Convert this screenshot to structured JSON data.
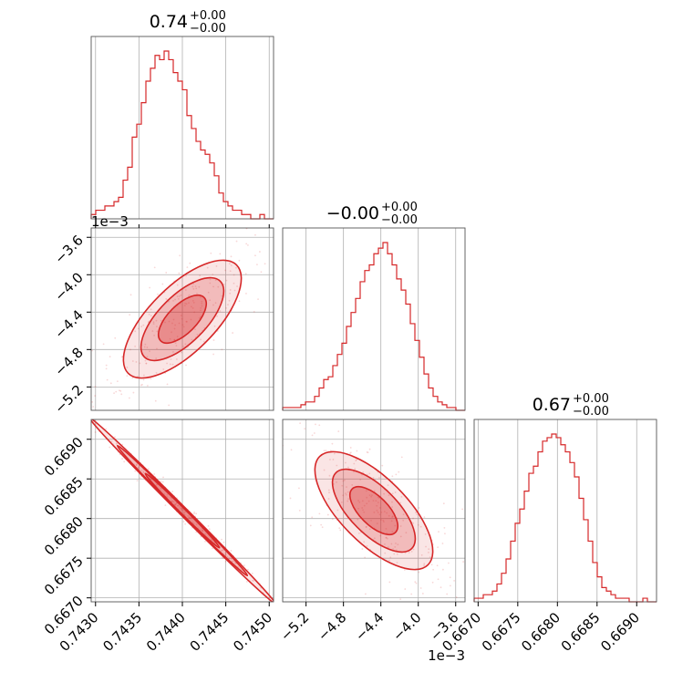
{
  "chart_data": {
    "type": "corner",
    "color": "#d62728",
    "parameters": [
      {
        "median": 0.74,
        "title_main": "0.74",
        "title_plus": "+0.00",
        "title_minus": "−0.00",
        "range": [
          0.74295,
          0.74505
        ],
        "ticks": [
          0.743,
          0.7435,
          0.744,
          0.7445,
          0.745
        ],
        "tick_labels": [
          "0.7430",
          "0.7435",
          "0.7440",
          "0.7445",
          "0.7450"
        ]
      },
      {
        "median": -0.0,
        "title_main": "−0.00",
        "title_plus": "+0.00",
        "title_minus": "−0.00",
        "offset_label": "1e−3",
        "range": [
          -5.45,
          -3.5
        ],
        "ticks": [
          -5.2,
          -4.8,
          -4.4,
          -4.0,
          -3.6
        ],
        "tick_labels": [
          "−5.2",
          "−4.8",
          "−4.4",
          "−4.0",
          "−3.6"
        ]
      },
      {
        "median": 0.67,
        "title_main": "0.67",
        "title_plus": "+0.00",
        "title_minus": "−0.00",
        "range": [
          0.66695,
          0.66925
        ],
        "ticks": [
          0.667,
          0.6675,
          0.668,
          0.6685,
          0.669
        ],
        "tick_labels": [
          "0.6670",
          "0.6675",
          "0.6680",
          "0.6685",
          "0.6690"
        ]
      }
    ],
    "histograms": [
      {
        "param": 0,
        "counts": [
          1,
          2,
          2,
          3,
          3,
          4,
          5,
          9,
          12,
          19,
          22,
          27,
          32,
          35,
          38,
          37,
          39,
          37,
          34,
          32,
          30,
          24,
          21,
          18,
          16,
          15,
          13,
          10,
          6,
          4,
          3,
          2,
          2,
          1,
          1,
          0,
          0,
          1,
          0,
          0
        ]
      },
      {
        "param": 1,
        "counts": [
          1,
          1,
          1,
          1,
          2,
          3,
          3,
          5,
          8,
          11,
          12,
          16,
          20,
          24,
          30,
          35,
          40,
          46,
          50,
          52,
          56,
          58,
          60,
          56,
          52,
          47,
          43,
          38,
          31,
          25,
          19,
          13,
          8,
          5,
          3,
          2,
          1,
          1,
          0,
          0
        ]
      },
      {
        "param": 2,
        "counts": [
          1,
          1,
          2,
          2,
          3,
          5,
          8,
          12,
          17,
          22,
          26,
          31,
          36,
          38,
          42,
          45,
          46,
          47,
          46,
          44,
          42,
          39,
          35,
          29,
          23,
          17,
          11,
          7,
          4,
          3,
          2,
          1,
          1,
          1,
          0,
          0,
          0,
          1,
          0,
          0
        ]
      }
    ],
    "pairs": [
      {
        "x_param": 0,
        "y_param": 1,
        "correlation": 0.75
      },
      {
        "x_param": 0,
        "y_param": 2,
        "correlation": -0.995
      },
      {
        "x_param": 1,
        "y_param": 2,
        "correlation": -0.7
      }
    ],
    "grid": true
  }
}
